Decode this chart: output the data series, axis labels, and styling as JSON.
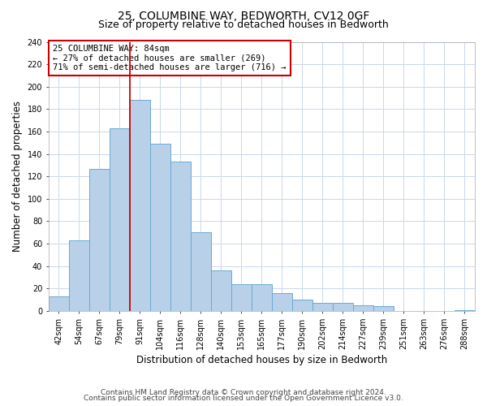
{
  "title": "25, COLUMBINE WAY, BEDWORTH, CV12 0GF",
  "subtitle": "Size of property relative to detached houses in Bedworth",
  "xlabel": "Distribution of detached houses by size in Bedworth",
  "ylabel": "Number of detached properties",
  "bin_labels": [
    "42sqm",
    "54sqm",
    "67sqm",
    "79sqm",
    "91sqm",
    "104sqm",
    "116sqm",
    "128sqm",
    "140sqm",
    "153sqm",
    "165sqm",
    "177sqm",
    "190sqm",
    "202sqm",
    "214sqm",
    "227sqm",
    "239sqm",
    "251sqm",
    "263sqm",
    "276sqm",
    "288sqm"
  ],
  "bar_heights": [
    13,
    63,
    127,
    163,
    188,
    149,
    133,
    70,
    36,
    24,
    24,
    16,
    10,
    7,
    7,
    5,
    4,
    0,
    0,
    0,
    1
  ],
  "bar_color": "#b8d0e8",
  "bar_edge_color": "#6aaad4",
  "property_line_value": 3.5,
  "property_line_color": "#cc0000",
  "annotation_text": "25 COLUMBINE WAY: 84sqm\n← 27% of detached houses are smaller (269)\n71% of semi-detached houses are larger (716) →",
  "annotation_box_color": "#ffffff",
  "annotation_box_edge": "#cc0000",
  "ylim": [
    0,
    240
  ],
  "yticks": [
    0,
    20,
    40,
    60,
    80,
    100,
    120,
    140,
    160,
    180,
    200,
    220,
    240
  ],
  "footnote1": "Contains HM Land Registry data © Crown copyright and database right 2024.",
  "footnote2": "Contains public sector information licensed under the Open Government Licence v3.0.",
  "title_fontsize": 10,
  "subtitle_fontsize": 9,
  "axis_label_fontsize": 8.5,
  "tick_fontsize": 7,
  "annotation_fontsize": 7.5,
  "footnote_fontsize": 6.5,
  "background_color": "#ffffff",
  "grid_color": "#c8d8ea"
}
